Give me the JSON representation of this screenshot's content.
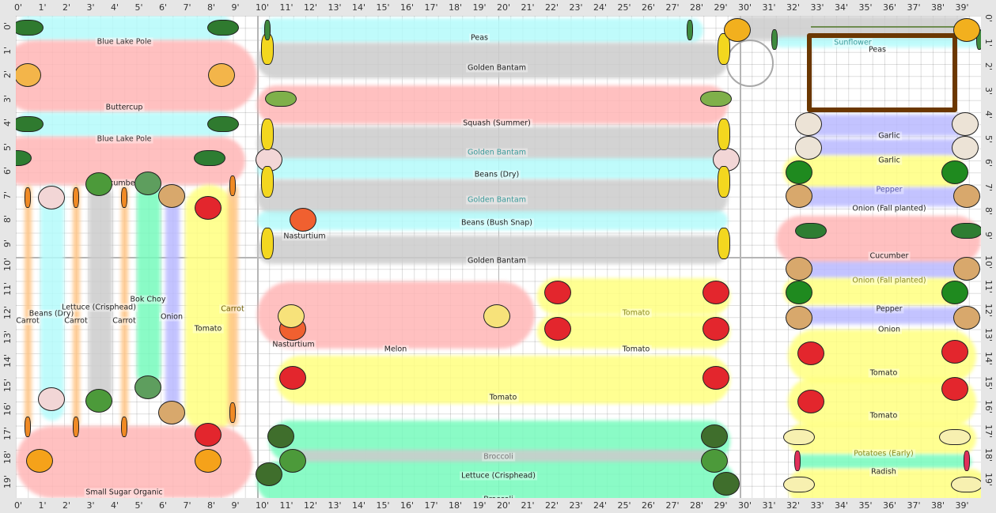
{
  "ruler": {
    "x_labels": [
      "0'",
      "1'",
      "2'",
      "3'",
      "4'",
      "5'",
      "6'",
      "7'",
      "8'",
      "9'",
      "10'",
      "11'",
      "12'",
      "13'",
      "14'",
      "15'",
      "16'",
      "17'",
      "18'",
      "19'",
      "20'",
      "21'",
      "22'",
      "23'",
      "24'",
      "25'",
      "26'",
      "27'",
      "28'",
      "29'",
      "30'",
      "31'",
      "32'",
      "33'",
      "34'",
      "35'",
      "36'",
      "37'",
      "38'",
      "39'"
    ],
    "y_labels": [
      "0'",
      "1'",
      "2'",
      "3'",
      "4'",
      "5'",
      "6'",
      "7'",
      "8'",
      "9'",
      "10'",
      "11'",
      "12'",
      "13'",
      "14'",
      "15'",
      "16'",
      "17'",
      "18'",
      "19'"
    ]
  },
  "bed_colors": {
    "cyan": "#b4fbfb",
    "pink": "#ffb6b6",
    "gray": "#cccccc",
    "yellow": "#ffff80",
    "green": "#76fbbd",
    "purple": "#b9b9ff",
    "orange": "#ffc585",
    "none": "transparent"
  },
  "beds": [
    {
      "label": "Blue Lake Pole",
      "text_color": "#333"
    },
    {
      "label": "Buttercup",
      "text_color": "#222"
    },
    {
      "label": "Blue Lake Pole",
      "text_color": "#333"
    },
    {
      "label": "Cucumber",
      "text_color": "#222"
    },
    {
      "label": "Carrot",
      "text_color": "#222"
    },
    {
      "label": "Beans (Dry)",
      "text_color": "#222"
    },
    {
      "label": "Carrot",
      "text_color": "#222"
    },
    {
      "label": "Lettuce (Crisphead)",
      "text_color": "#222"
    },
    {
      "label": "Carrot",
      "text_color": "#222"
    },
    {
      "label": "Bok Choy",
      "text_color": "#222"
    },
    {
      "label": "Onion",
      "text_color": "#222"
    },
    {
      "label": "Tomato",
      "text_color": "#222"
    },
    {
      "label": "Carrot",
      "text_color": "#6b5a00"
    },
    {
      "label": "Small Sugar Organic",
      "text_color": "#222"
    },
    {
      "label": "Peas",
      "text_color": "#222"
    },
    {
      "label": "Golden Bantam",
      "text_color": "#222"
    },
    {
      "label": "Squash (Summer)",
      "text_color": "#222"
    },
    {
      "label": "Golden Bantam",
      "text_color": "#3a9a9a"
    },
    {
      "label": "Beans (Dry)",
      "text_color": "#222"
    },
    {
      "label": "Golden Bantam",
      "text_color": "#3a9a9a"
    },
    {
      "label": "Beans (Bush Snap)",
      "text_color": "#222"
    },
    {
      "label": "Golden Bantam",
      "text_color": "#222"
    },
    {
      "label": "Nasturtium",
      "text_color": "#222"
    },
    {
      "label": "Melon",
      "text_color": "#222"
    },
    {
      "label": "Nasturtium",
      "text_color": "#222"
    },
    {
      "label": "Tomato",
      "text_color": "#8a8a20"
    },
    {
      "label": "Tomato",
      "text_color": "#222"
    },
    {
      "label": "Tomato",
      "text_color": "#222"
    },
    {
      "label": "Broccoli",
      "text_color": "#777"
    },
    {
      "label": "Lettuce (Crisphead)",
      "text_color": "#222"
    },
    {
      "label": "Broccoli",
      "text_color": "#222"
    },
    {
      "label": "Sunflower",
      "text_color": "#3a9a9a"
    },
    {
      "label": "Peas",
      "text_color": "#222"
    },
    {
      "label": "Garlic",
      "text_color": "#222"
    },
    {
      "label": "Garlic",
      "text_color": "#222"
    },
    {
      "label": "Pepper",
      "text_color": "#5555aa"
    },
    {
      "label": "Onion (Fall planted)",
      "text_color": "#222"
    },
    {
      "label": "Cucumber",
      "text_color": "#222"
    },
    {
      "label": "Onion (Fall planted)",
      "text_color": "#8a8a20"
    },
    {
      "label": "Pepper",
      "text_color": "#222"
    },
    {
      "label": "Onion",
      "text_color": "#222"
    },
    {
      "label": "Tomato",
      "text_color": "#222"
    },
    {
      "label": "Tomato",
      "text_color": "#222"
    },
    {
      "label": "Potatoes (Early)",
      "text_color": "#8a8a20"
    },
    {
      "label": "Radish",
      "text_color": "#222"
    },
    {
      "label": "Potatoes (Early)",
      "text_color": "#222"
    }
  ],
  "plant_icons": {
    "green-bean-icon": {
      "fill": "#2f7a2f",
      "shape": "pod"
    },
    "butternut-squash-icon": {
      "fill": "#f3b54a",
      "shape": "round"
    },
    "cucumber-icon": {
      "fill": "#2e7d32",
      "shape": "pod"
    },
    "carrot-icon": {
      "fill": "#f08a24",
      "shape": "thin"
    },
    "dry-bean-icon": {
      "fill": "#f2d6d6",
      "shape": "round"
    },
    "cabbage-icon": {
      "fill": "#4c9a3a",
      "shape": "round"
    },
    "bok-choy-icon": {
      "fill": "#5e9e5e",
      "shape": "round"
    },
    "onion-icon": {
      "fill": "#d8a86c",
      "shape": "round"
    },
    "tomato-icon": {
      "fill": "#e3262d",
      "shape": "round"
    },
    "pumpkin-icon": {
      "fill": "#f5a21a",
      "shape": "round"
    },
    "corn-icon": {
      "fill": "#f3d71f",
      "shape": "tall"
    },
    "pea-pod-icon": {
      "fill": "#3e8a3e",
      "shape": "thin"
    },
    "summer-squash-icon": {
      "fill": "#7fb04a",
      "shape": "pod"
    },
    "nasturtium-icon": {
      "fill": "#f06030",
      "shape": "round"
    },
    "melon-icon": {
      "fill": "#f7e27a",
      "shape": "round"
    },
    "broccoli-icon": {
      "fill": "#3f6e2c",
      "shape": "round"
    },
    "sunflower-icon": {
      "fill": "#f2b01e",
      "shape": "round"
    },
    "garlic-icon": {
      "fill": "#ece3d6",
      "shape": "round"
    },
    "pepper-icon": {
      "fill": "#1f8a1f",
      "shape": "round"
    },
    "potato-icon": {
      "fill": "#f7f0b0",
      "shape": "pod"
    },
    "radish-icon": {
      "fill": "#e0305a",
      "shape": "thin"
    }
  }
}
